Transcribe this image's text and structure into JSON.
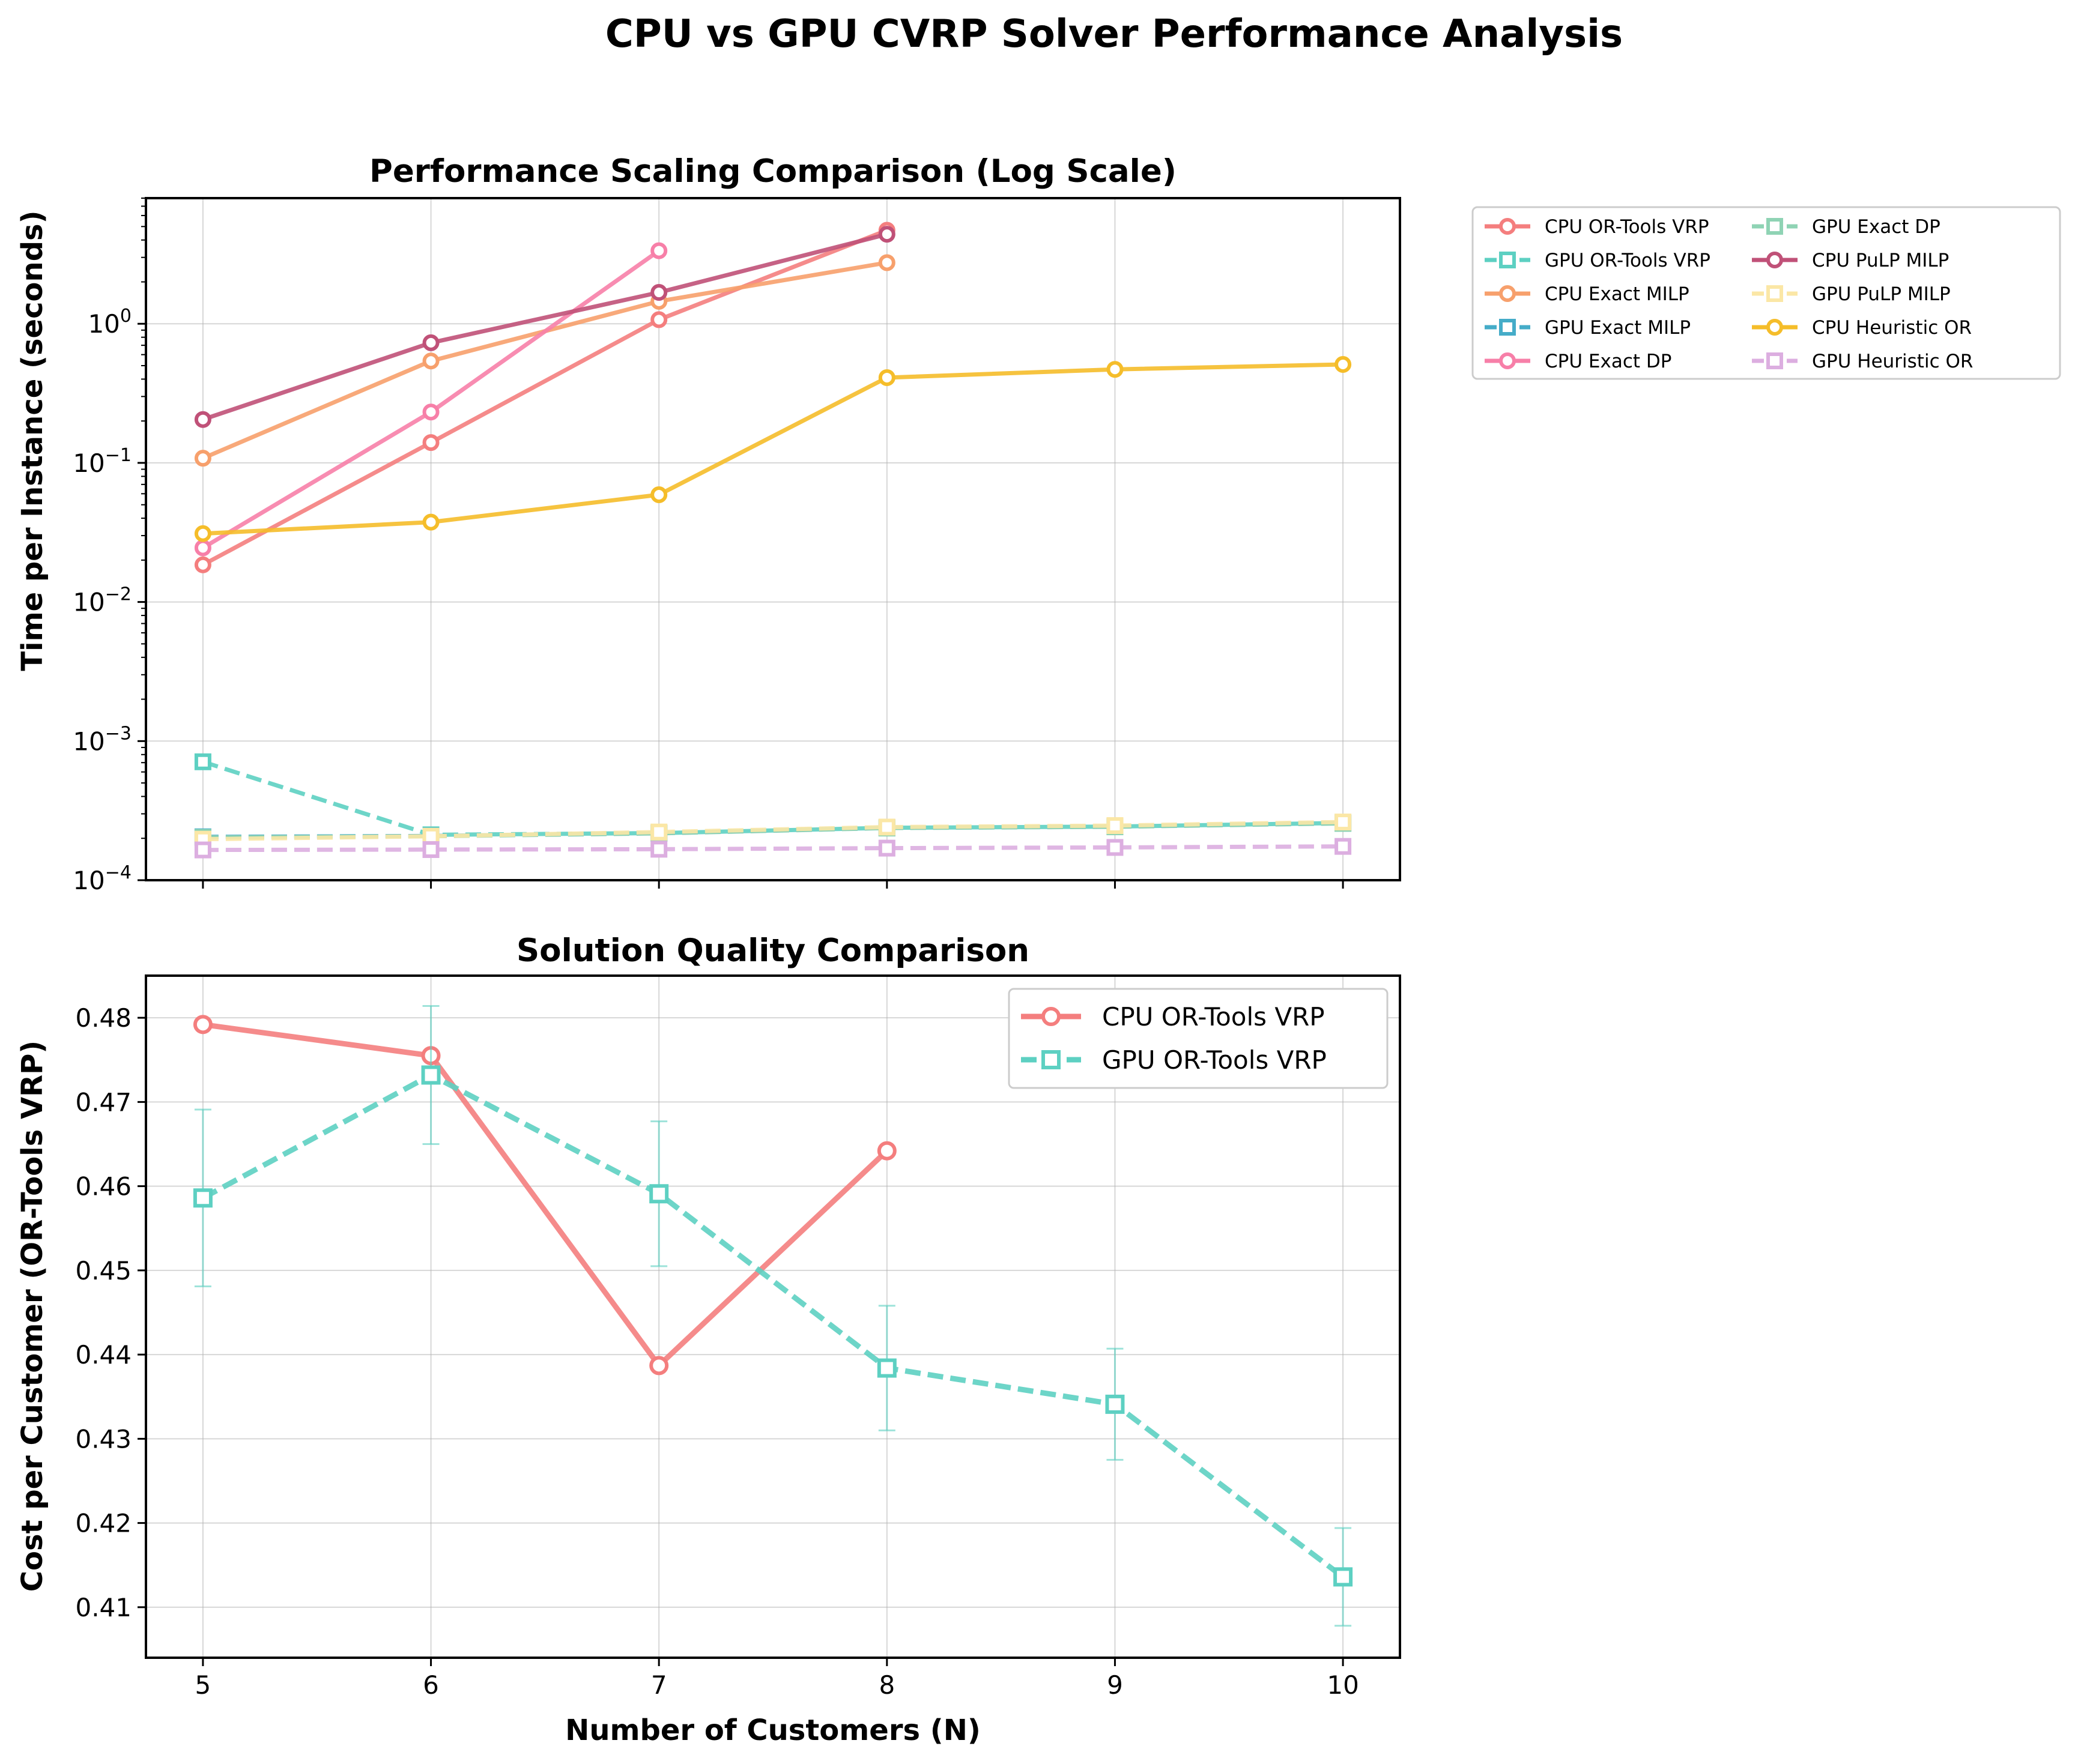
{
  "figure": {
    "title": "CPU vs GPU CVRP Solver Performance Analysis"
  },
  "chart_data": [
    {
      "type": "line",
      "title": "Performance Scaling Comparison (Log Scale)",
      "xlabel": "",
      "ylabel": "Time per Instance (seconds)",
      "yscale": "log",
      "ylim": [
        0.0001,
        8
      ],
      "xlim": [
        4.75,
        10.25
      ],
      "x_ticks": [
        5,
        6,
        7,
        8,
        9,
        10
      ],
      "y_ticks": [
        {
          "value": 0.0001,
          "base": "10",
          "exp": "−4"
        },
        {
          "value": 0.001,
          "base": "10",
          "exp": "−3"
        },
        {
          "value": 0.01,
          "base": "10",
          "exp": "−2"
        },
        {
          "value": 0.1,
          "base": "10",
          "exp": "−1"
        },
        {
          "value": 1,
          "base": "10",
          "exp": "0"
        }
      ],
      "grid": true,
      "legend_position": "outside-right",
      "series": [
        {
          "name": "CPU OR-Tools VRP",
          "color": "#f47e7e",
          "style": "solid",
          "marker": "circle",
          "x": [
            5,
            6,
            7,
            8
          ],
          "y": [
            0.0185,
            0.14,
            1.07,
            4.7
          ]
        },
        {
          "name": "GPU OR-Tools VRP",
          "color": "#5dd0c2",
          "style": "dashed",
          "marker": "square",
          "x": [
            5,
            6,
            7,
            8,
            9,
            10
          ],
          "y": [
            0.00071,
            0.000212,
            0.000218,
            0.000238,
            0.000243,
            0.000258
          ]
        },
        {
          "name": "CPU Exact MILP",
          "color": "#f7a06c",
          "style": "solid",
          "marker": "circle",
          "x": [
            5,
            6,
            7,
            8
          ],
          "y": [
            0.108,
            0.54,
            1.45,
            2.75
          ]
        },
        {
          "name": "GPU Exact MILP",
          "color": "#45acc8",
          "style": "dashed",
          "marker": "square",
          "x": [
            5,
            6,
            7,
            8,
            9,
            10
          ],
          "y": [
            0.000205,
            0.000208,
            0.000218,
            0.000238,
            0.000243,
            0.000258
          ]
        },
        {
          "name": "CPU Exact DP",
          "color": "#f77fa8",
          "style": "solid",
          "marker": "circle",
          "x": [
            5,
            6,
            7
          ],
          "y": [
            0.0245,
            0.232,
            3.35
          ]
        },
        {
          "name": "GPU Exact DP",
          "color": "#8fd3b4",
          "style": "dashed",
          "marker": "square",
          "x": [
            5,
            6,
            7,
            8,
            9,
            10
          ],
          "y": [
            0.000203,
            0.000207,
            0.000217,
            0.000237,
            0.000242,
            0.000256
          ]
        },
        {
          "name": "CPU PuLP MILP",
          "color": "#c05178",
          "style": "solid",
          "marker": "circle",
          "x": [
            5,
            6,
            7,
            8
          ],
          "y": [
            0.205,
            0.73,
            1.68,
            4.4
          ]
        },
        {
          "name": "GPU PuLP MILP",
          "color": "#fbe7a6",
          "style": "dashed",
          "marker": "square",
          "x": [
            5,
            6,
            7,
            8,
            9,
            10
          ],
          "y": [
            0.000197,
            0.000207,
            0.000222,
            0.000241,
            0.000247,
            0.000262
          ]
        },
        {
          "name": "CPU Heuristic OR",
          "color": "#f5bd2a",
          "style": "solid",
          "marker": "circle",
          "x": [
            5,
            6,
            7,
            8,
            9,
            10
          ],
          "y": [
            0.031,
            0.0375,
            0.059,
            0.41,
            0.47,
            0.51
          ]
        },
        {
          "name": "GPU Heuristic OR",
          "color": "#dcaee0",
          "style": "dashed",
          "marker": "square",
          "x": [
            5,
            6,
            7,
            8,
            9,
            10
          ],
          "y": [
            0.000165,
            0.000166,
            0.000167,
            0.00017,
            0.000172,
            0.000175
          ]
        }
      ]
    },
    {
      "type": "line",
      "title": "Solution Quality Comparison",
      "xlabel": "Number of Customers (N)",
      "ylabel": "Cost per Customer (OR-Tools VRP)",
      "yscale": "linear",
      "ylim": [
        0.404,
        0.485
      ],
      "xlim": [
        4.75,
        10.25
      ],
      "x_ticks": [
        5,
        6,
        7,
        8,
        9,
        10
      ],
      "y_ticks": [
        0.41,
        0.42,
        0.43,
        0.44,
        0.45,
        0.46,
        0.47,
        0.48
      ],
      "grid": true,
      "legend_position": "upper-right",
      "series": [
        {
          "name": "CPU OR-Tools VRP",
          "color": "#f47e7e",
          "style": "solid",
          "marker": "circle",
          "x": [
            5,
            6,
            7,
            8
          ],
          "y": [
            0.4792,
            0.4755,
            0.4387,
            0.4642
          ],
          "yerr": null
        },
        {
          "name": "GPU OR-Tools VRP",
          "color": "#5dd0c2",
          "style": "dashed",
          "marker": "square",
          "x": [
            5,
            6,
            7,
            8,
            9,
            10
          ],
          "y": [
            0.4586,
            0.4732,
            0.4591,
            0.4384,
            0.4341,
            0.4136
          ],
          "yerr": [
            0.0105,
            0.0082,
            0.0086,
            0.0074,
            0.0066,
            0.0058
          ]
        }
      ]
    }
  ]
}
